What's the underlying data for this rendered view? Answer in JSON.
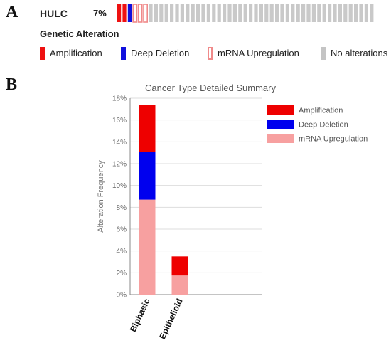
{
  "panel_a": {
    "letter": "A",
    "gene": "HULC",
    "percent": "7%",
    "oncoprint_samples": [
      "amp",
      "amp",
      "del",
      "mrna",
      "mrna",
      "mrna",
      "none",
      "none",
      "none",
      "none",
      "none",
      "none",
      "none",
      "none",
      "none",
      "none",
      "none",
      "none",
      "none",
      "none",
      "none",
      "none",
      "none",
      "none",
      "none",
      "none",
      "none",
      "none",
      "none",
      "none",
      "none",
      "none",
      "none",
      "none",
      "none",
      "none",
      "none",
      "none",
      "none",
      "none",
      "none",
      "none",
      "none",
      "none",
      "none",
      "none",
      "none",
      "none",
      "none"
    ],
    "legend_title": "Genetic Alteration",
    "legend": [
      {
        "label": "Amplification",
        "color": "#ee1111",
        "style": "solid"
      },
      {
        "label": "Deep Deletion",
        "color": "#1111dd",
        "style": "solid"
      },
      {
        "label": "mRNA Upregulation",
        "color": "#f08a8a",
        "style": "outline"
      },
      {
        "label": "No alterations",
        "color": "#c4c4c4",
        "style": "solid"
      }
    ]
  },
  "panel_b": {
    "letter": "B"
  },
  "chart_data": {
    "type": "bar",
    "stacked": true,
    "title": "Cancer Type Detailed Summary",
    "xlabel": "",
    "ylabel": "Alteration Frequency",
    "ylim": [
      0,
      18
    ],
    "yticks": [
      "0%",
      "2%",
      "4%",
      "6%",
      "8%",
      "10%",
      "12%",
      "14%",
      "16%",
      "18%"
    ],
    "categories": [
      "Biphasic",
      "Epithelioid"
    ],
    "series": [
      {
        "name": "mRNA Upregulation",
        "color": "#f7a0a0",
        "values": [
          8.7,
          1.75
        ]
      },
      {
        "name": "Deep Deletion",
        "color": "#0000ee",
        "values": [
          4.4,
          0
        ]
      },
      {
        "name": "Amplification",
        "color": "#ee0000",
        "values": [
          4.3,
          1.75
        ]
      }
    ],
    "legend_order": [
      "Amplification",
      "Deep Deletion",
      "mRNA Upregulation"
    ],
    "legend_position": "right",
    "grid": true
  }
}
